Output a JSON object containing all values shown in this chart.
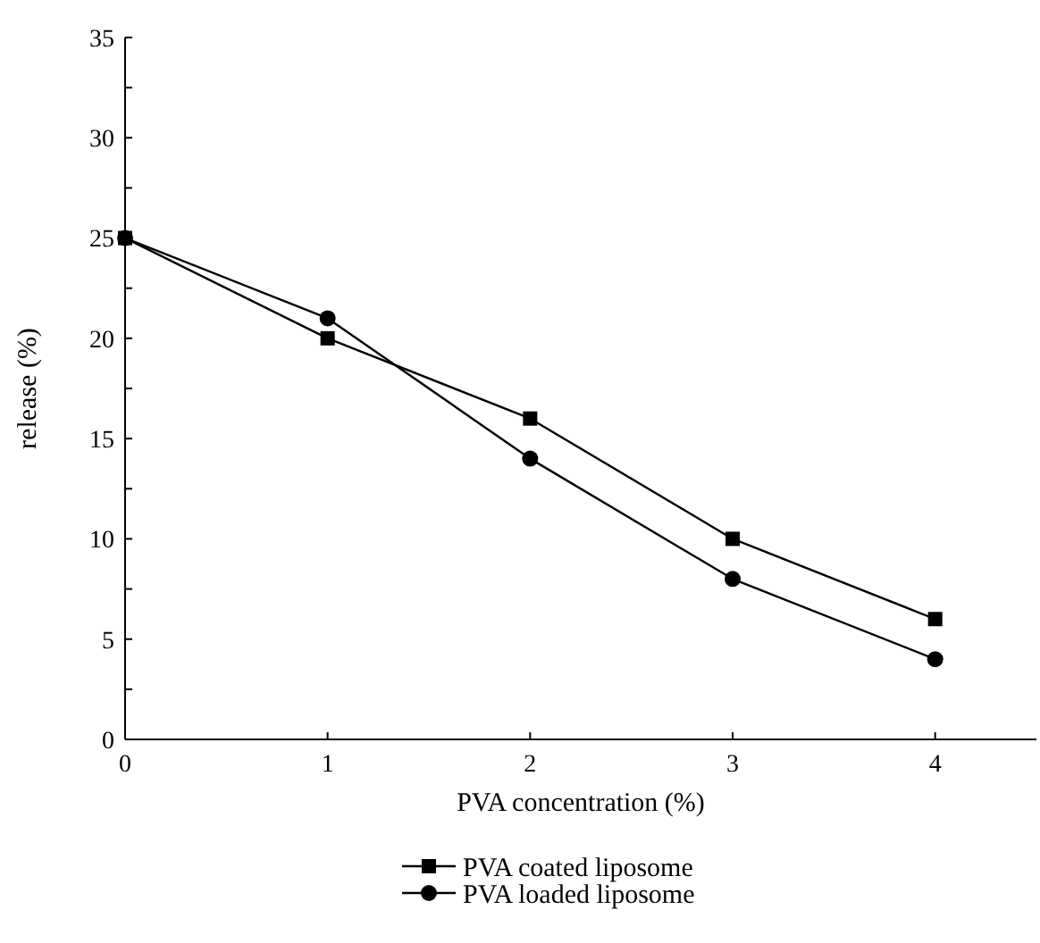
{
  "chart_data": {
    "type": "line",
    "xlabel": "PVA concentration (%)",
    "ylabel": "release (%)",
    "x": [
      0,
      1,
      2,
      3,
      4
    ],
    "series": [
      {
        "name": "PVA coated liposome",
        "color": "#000000",
        "marker": "square",
        "values": [
          25,
          20,
          16,
          10,
          6
        ]
      },
      {
        "name": "PVA loaded liposome",
        "color": "#000000",
        "marker": "circle",
        "values": [
          25,
          21,
          14,
          8,
          4
        ]
      }
    ],
    "xlim": [
      0,
      4.5
    ],
    "xticks": [
      0,
      1,
      2,
      3,
      4
    ],
    "ylim": [
      0,
      35
    ],
    "yticks": [
      0,
      {
        "value": 2.5,
        "label": null
      },
      5,
      {
        "value": 7.5,
        "label": null
      },
      10,
      {
        "value": 12.5,
        "label": null
      },
      15,
      {
        "value": 17.5,
        "label": null
      },
      20,
      {
        "value": 22.5,
        "label": null
      },
      25,
      {
        "value": 27.5,
        "label": null
      },
      30,
      {
        "value": 32.5,
        "label": null
      },
      35
    ],
    "grid": false,
    "legend": "bottom",
    "line_style": "solid"
  }
}
